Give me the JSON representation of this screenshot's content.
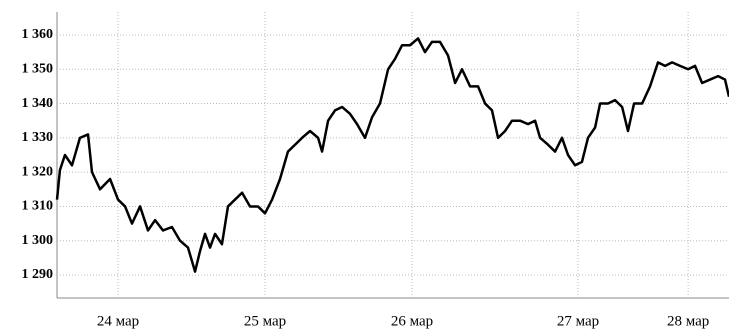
{
  "chart_data": {
    "type": "line",
    "x": [
      23.585,
      23.605,
      23.639,
      23.687,
      23.741,
      23.796,
      23.823,
      23.878,
      23.946,
      24.0,
      24.048,
      24.095,
      24.15,
      24.204,
      24.252,
      24.306,
      24.367,
      24.422,
      24.476,
      24.524,
      24.558,
      24.592,
      24.626,
      24.66,
      24.707,
      24.748,
      24.796,
      24.844,
      24.898,
      24.952,
      25.0,
      25.048,
      25.102,
      25.156,
      25.204,
      25.252,
      25.306,
      25.361,
      25.388,
      25.429,
      25.476,
      25.524,
      25.578,
      25.626,
      25.68,
      25.728,
      25.782,
      25.837,
      25.884,
      25.932,
      25.986,
      26.041,
      26.088,
      26.136,
      26.19,
      26.245,
      26.293,
      26.34,
      26.395,
      26.449,
      26.497,
      26.544,
      26.585,
      26.633,
      26.68,
      26.735,
      26.789,
      26.837,
      26.871,
      26.925,
      26.973,
      27.02,
      27.061,
      27.109,
      27.156,
      27.197,
      27.245,
      27.279,
      27.333,
      27.381,
      27.429,
      27.469,
      27.51,
      27.565,
      27.619,
      27.673,
      27.721,
      27.769,
      27.823,
      27.878,
      27.925,
      27.973,
      28.027,
      28.082,
      28.129,
      28.156
    ],
    "series": [
      {
        "color": "#000000",
        "values": [
          1312,
          1320.6,
          1325,
          1322,
          1330,
          1331,
          1320,
          1315,
          1318,
          1312,
          1310,
          1305,
          1310,
          1303,
          1306,
          1303,
          1304,
          1300,
          1298,
          1291,
          1297,
          1302,
          1298,
          1302,
          1299,
          1310,
          1312,
          1314,
          1310,
          1310,
          1308,
          1312,
          1318,
          1326,
          1328,
          1330,
          1332,
          1330,
          1326,
          1335,
          1338,
          1339,
          1337,
          1334,
          1330,
          1336,
          1340,
          1350,
          1353,
          1357,
          1357,
          1359,
          1355,
          1358,
          1358,
          1354,
          1346,
          1350,
          1345,
          1345,
          1340,
          1338,
          1330,
          1332,
          1335,
          1335,
          1334,
          1335,
          1330,
          1328,
          1326,
          1330,
          1325,
          1322,
          1323,
          1330,
          1333,
          1340,
          1340,
          1341,
          1339,
          1332,
          1340,
          1340,
          1345,
          1352,
          1351,
          1352,
          1351,
          1350,
          1351,
          1346,
          1347,
          1348,
          1347,
          1342
        ]
      }
    ],
    "xlim": [
      23.585,
      28.156
    ],
    "xticks": [
      {
        "value": 24,
        "label": "24 мар"
      },
      {
        "value": 25,
        "label": "25 мар"
      },
      {
        "value": 26,
        "label": "26 мар"
      },
      {
        "value": 27.129,
        "label": "27 мар"
      },
      {
        "value": 27.878,
        "label": "28 мар"
      }
    ],
    "ylim": [
      1283.3,
      1366.7
    ],
    "yticks": [
      {
        "value": 1290,
        "label": "1 290"
      },
      {
        "value": 1300,
        "label": "1 300"
      },
      {
        "value": 1310,
        "label": "1 310"
      },
      {
        "value": 1320,
        "label": "1 320"
      },
      {
        "value": 1330,
        "label": "1 330"
      },
      {
        "value": 1340,
        "label": "1 340"
      },
      {
        "value": 1350,
        "label": "1 350"
      },
      {
        "value": 1360,
        "label": "1 360"
      }
    ],
    "grid": true
  }
}
